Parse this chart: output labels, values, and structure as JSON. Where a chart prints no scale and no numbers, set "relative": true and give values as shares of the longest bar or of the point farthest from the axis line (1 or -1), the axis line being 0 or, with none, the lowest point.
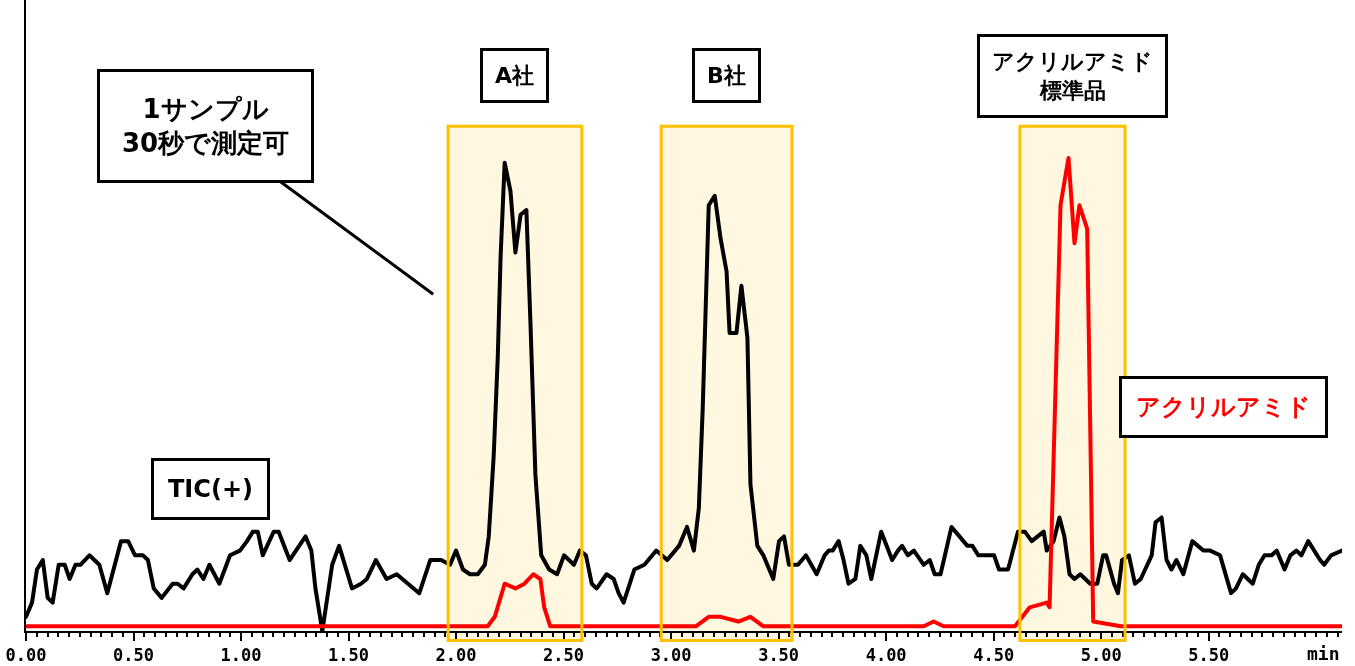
{
  "chart_data": {
    "type": "line",
    "relative": true,
    "xlabel": "min",
    "legend": false,
    "grid": false,
    "marker": "none",
    "line_style": "solid",
    "xlim": [
      0,
      6.12
    ],
    "xticks": [
      {
        "value": 0,
        "label": "0.00"
      },
      {
        "value": 0.5,
        "label": "0.50"
      },
      {
        "value": 1,
        "label": "1.00"
      },
      {
        "value": 1.5,
        "label": "1.50"
      },
      {
        "value": 2,
        "label": "2.00"
      },
      {
        "value": 2.5,
        "label": "2.50"
      },
      {
        "value": 3,
        "label": "3.00"
      },
      {
        "value": 3.5,
        "label": "3.50"
      },
      {
        "value": 4,
        "label": "4.00"
      },
      {
        "value": 4.5,
        "label": "4.50"
      },
      {
        "value": 5,
        "label": "5.00"
      },
      {
        "value": 5.5,
        "label": "5.50"
      }
    ],
    "series": [
      {
        "name": "TIC(+)",
        "color": "#000000",
        "x": [
          0,
          0.028,
          0.051,
          0.078,
          0.101,
          0.124,
          0.152,
          0.18,
          0.203,
          0.23,
          0.253,
          0.295,
          0.341,
          0.378,
          0.442,
          0.475,
          0.507,
          0.544,
          0.567,
          0.594,
          0.631,
          0.682,
          0.705,
          0.733,
          0.774,
          0.797,
          0.825,
          0.853,
          0.899,
          0.949,
          0.995,
          1.028,
          1.055,
          1.078,
          1.101,
          1.152,
          1.175,
          1.226,
          1.3,
          1.327,
          1.346,
          1.378,
          1.424,
          1.456,
          1.516,
          1.558,
          1.585,
          1.627,
          1.677,
          1.724,
          1.829,
          1.88,
          1.931,
          1.972,
          2,
          2.032,
          2.065,
          2.101,
          2.134,
          2.152,
          2.175,
          2.194,
          2.207,
          2.226,
          2.253,
          2.276,
          2.3,
          2.327,
          2.346,
          2.369,
          2.396,
          2.433,
          2.47,
          2.502,
          2.548,
          2.576,
          2.604,
          2.631,
          2.654,
          2.7,
          2.733,
          2.756,
          2.779,
          2.829,
          2.876,
          2.931,
          2.982,
          3.037,
          3.074,
          3.106,
          3.129,
          3.147,
          3.175,
          3.203,
          3.23,
          3.258,
          3.272,
          3.304,
          3.327,
          3.355,
          3.369,
          3.401,
          3.429,
          3.475,
          3.502,
          3.525,
          3.548,
          3.59,
          3.627,
          3.677,
          3.714,
          3.733,
          3.751,
          3.779,
          3.802,
          3.825,
          3.857,
          3.88,
          3.908,
          3.931,
          3.977,
          4.028,
          4.055,
          4.074,
          4.101,
          4.129,
          4.175,
          4.203,
          4.226,
          4.253,
          4.304,
          4.341,
          4.378,
          4.401,
          4.429,
          4.456,
          4.502,
          4.525,
          4.567,
          4.613,
          4.645,
          4.677,
          4.733,
          4.747,
          4.779,
          4.806,
          4.829,
          4.853,
          4.876,
          4.903,
          4.949,
          4.982,
          5.009,
          5.023,
          5.06,
          5.078,
          5.097,
          5.129,
          5.157,
          5.184,
          5.235,
          5.253,
          5.281,
          5.304,
          5.327,
          5.35,
          5.382,
          5.424,
          5.475,
          5.507,
          5.553,
          5.604,
          5.627,
          5.659,
          5.705,
          5.733,
          5.76,
          5.793,
          5.816,
          5.853,
          5.88,
          5.908,
          5.931,
          5.963,
          5.977,
          6.018,
          6.037,
          6.069,
          6.12
        ],
        "values": [
          0.03,
          0.06,
          0.13,
          0.15,
          0.07,
          0.06,
          0.14,
          0.14,
          0.11,
          0.14,
          0.14,
          0.16,
          0.14,
          0.08,
          0.19,
          0.19,
          0.16,
          0.16,
          0.15,
          0.09,
          0.07,
          0.1,
          0.1,
          0.09,
          0.12,
          0.13,
          0.11,
          0.14,
          0.1,
          0.16,
          0.17,
          0.19,
          0.21,
          0.21,
          0.16,
          0.21,
          0.21,
          0.15,
          0.2,
          0.17,
          0.09,
          0,
          0.14,
          0.18,
          0.09,
          0.1,
          0.11,
          0.15,
          0.11,
          0.12,
          0.08,
          0.15,
          0.15,
          0.14,
          0.17,
          0.13,
          0.12,
          0.12,
          0.14,
          0.2,
          0.37,
          0.58,
          0.79,
          0.99,
          0.93,
          0.8,
          0.88,
          0.89,
          0.65,
          0.33,
          0.16,
          0.13,
          0.12,
          0.16,
          0.14,
          0.17,
          0.16,
          0.1,
          0.09,
          0.12,
          0.11,
          0.08,
          0.06,
          0.13,
          0.14,
          0.17,
          0.15,
          0.18,
          0.22,
          0.17,
          0.26,
          0.47,
          0.9,
          0.92,
          0.83,
          0.76,
          0.63,
          0.63,
          0.73,
          0.62,
          0.31,
          0.18,
          0.16,
          0.11,
          0.19,
          0.2,
          0.14,
          0.14,
          0.16,
          0.12,
          0.16,
          0.17,
          0.17,
          0.19,
          0.15,
          0.1,
          0.11,
          0.18,
          0.16,
          0.11,
          0.21,
          0.15,
          0.17,
          0.18,
          0.16,
          0.17,
          0.14,
          0.15,
          0.12,
          0.12,
          0.22,
          0.2,
          0.18,
          0.18,
          0.16,
          0.16,
          0.16,
          0.13,
          0.13,
          0.21,
          0.21,
          0.19,
          0.21,
          0.17,
          0.19,
          0.24,
          0.2,
          0.12,
          0.11,
          0.12,
          0.1,
          0.1,
          0.16,
          0.16,
          0.1,
          0.08,
          0.15,
          0.16,
          0.1,
          0.11,
          0.16,
          0.23,
          0.24,
          0.15,
          0.13,
          0.15,
          0.12,
          0.19,
          0.17,
          0.17,
          0.16,
          0.08,
          0.09,
          0.12,
          0.1,
          0.14,
          0.16,
          0.16,
          0.17,
          0.13,
          0.16,
          0.17,
          0.16,
          0.19,
          0.18,
          0.15,
          0.14,
          0.16,
          0.17
        ]
      },
      {
        "name": "アクリルアミド",
        "color": "#ff0000",
        "x": [
          0,
          2.147,
          2.18,
          2.226,
          2.276,
          2.318,
          2.359,
          2.392,
          2.41,
          2.438,
          3.115,
          3.175,
          3.23,
          3.313,
          3.369,
          3.429,
          4.175,
          4.221,
          4.267,
          4.599,
          4.668,
          4.747,
          4.76,
          4.811,
          4.848,
          4.876,
          4.899,
          4.935,
          4.963,
          5.092,
          6.12
        ],
        "values": [
          0.01,
          0.01,
          0.03,
          0.1,
          0.09,
          0.1,
          0.12,
          0.11,
          0.05,
          0.01,
          0.01,
          0.03,
          0.03,
          0.02,
          0.03,
          0.01,
          0.01,
          0.02,
          0.01,
          0.01,
          0.05,
          0.06,
          0.05,
          0.9,
          1,
          0.82,
          0.9,
          0.85,
          0.02,
          0.01,
          0.01
        ]
      }
    ],
    "bands": [
      {
        "axis": "x",
        "from": 1.963,
        "to": 2.585,
        "label": "A社",
        "color": "#ffc000"
      },
      {
        "axis": "x",
        "from": 2.954,
        "to": 3.562,
        "label": "B社",
        "color": "#ffc000"
      },
      {
        "axis": "x",
        "from": 4.622,
        "to": 5.111,
        "label": "アクリルアミド標準品",
        "color": "#ffc000"
      }
    ],
    "annotations": [
      "1サンプル\n30秒で測定可"
    ]
  }
}
